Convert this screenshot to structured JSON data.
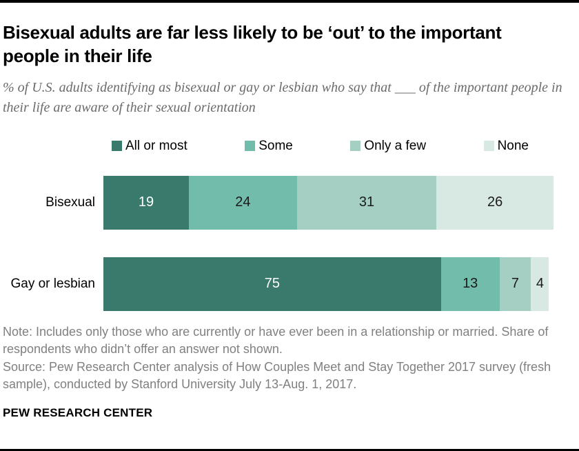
{
  "header": {
    "title": "Bisexual adults are far less likely to be ‘out’ to the important people in their life",
    "subtitle": "% of U.S. adults identifying as bisexual or gay or lesbian who say that ___ of the important people in their life are aware of their sexual orientation"
  },
  "chart_data": {
    "type": "bar",
    "orientation": "horizontal",
    "stacked": true,
    "xlim": [
      0,
      100
    ],
    "legend_position": "top",
    "categories": [
      "Bisexual",
      "Gay or lesbian"
    ],
    "series": [
      {
        "name": "All or most",
        "color": "#397a6c",
        "value_color": "#ffffff",
        "values": [
          19,
          75
        ]
      },
      {
        "name": "Some",
        "color": "#72bcab",
        "value_color": "#1a1a1a",
        "values": [
          24,
          13
        ]
      },
      {
        "name": "Only a few",
        "color": "#a6cfc4",
        "value_color": "#1a1a1a",
        "values": [
          31,
          7
        ]
      },
      {
        "name": "None",
        "color": "#d8e9e3",
        "value_color": "#1a1a1a",
        "values": [
          26,
          4
        ]
      }
    ]
  },
  "notes": {
    "note": "Note: Includes only those who are currently or have ever been in a relationship or married. Share of respondents who didn’t offer an answer not shown.",
    "source": "Source: Pew Research Center analysis of How Couples Meet and Stay Together 2017 survey (fresh sample), conducted by Stanford University July 13-Aug. 1, 2017."
  },
  "footer": {
    "brand": "PEW RESEARCH CENTER"
  },
  "colors": {
    "rule": "#000000",
    "subtitle_text": "#6b6b6b",
    "notes_text": "#808080"
  }
}
